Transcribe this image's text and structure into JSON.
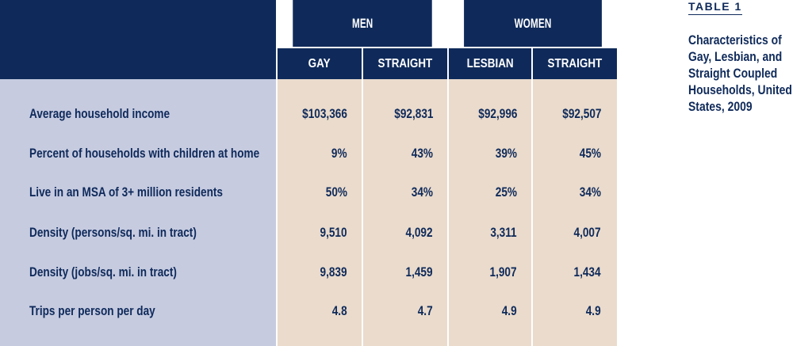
{
  "table": {
    "groups": [
      "MEN",
      "WOMEN"
    ],
    "subheaders": [
      "GAY",
      "STRAIGHT",
      "LESBIAN",
      "STRAIGHT"
    ],
    "rows": [
      {
        "label": "Average household income",
        "values": [
          "$103,366",
          "$92,831",
          "$92,996",
          "$92,507"
        ]
      },
      {
        "label": "Percent of households with children at home",
        "values": [
          "9%",
          "43%",
          "39%",
          "45%"
        ]
      },
      {
        "label": "Live in an MSA of 3+ million residents",
        "values": [
          "50%",
          "34%",
          "25%",
          "34%"
        ]
      },
      {
        "label": "Density (persons/sq. mi. in tract)",
        "values": [
          "9,510",
          "4,092",
          "3,311",
          "4,007"
        ]
      },
      {
        "label": "Density (jobs/sq. mi. in tract)",
        "values": [
          "9,839",
          "1,459",
          "1,907",
          "1,434"
        ]
      },
      {
        "label": "Trips per person per day",
        "values": [
          "4.8",
          "4.7",
          "4.9",
          "4.9"
        ]
      }
    ]
  },
  "caption": {
    "label": "TABLE 1",
    "text": "Characteristics of Gay, Lesbian, and Straight Coupled Households, United States, 2009"
  },
  "colors": {
    "navy": "#0f2a5a",
    "label_panel": "#c6cbe0",
    "value_panel": "#eadbcc"
  }
}
